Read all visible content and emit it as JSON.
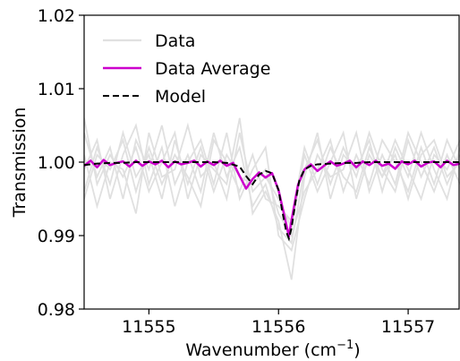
{
  "chart_data": {
    "type": "line",
    "title": "",
    "xlabel": "Wavenumber (cm",
    "xlabel_sup": "−1",
    "xlabel_tail": ")",
    "ylabel": "Transmission",
    "xlim": [
      11554.5,
      11557.4
    ],
    "ylim": [
      0.98,
      1.02
    ],
    "xticks": [
      11555,
      11556,
      11557
    ],
    "xtick_labels": [
      "11555",
      "11556",
      "11557"
    ],
    "yticks": [
      0.98,
      0.99,
      1.0,
      1.01,
      1.02
    ],
    "ytick_labels": [
      "0.98",
      "0.99",
      "1.00",
      "1.01",
      "1.02"
    ],
    "grid": false,
    "legend_position": "top-left",
    "series": [
      {
        "name": "Data",
        "color": "#e0e0e0",
        "style": "solid",
        "traces": [
          {
            "x": [
              11554.5,
              11554.6,
              11554.7,
              11554.8,
              11554.9,
              11555.0,
              11555.1,
              11555.2,
              11555.3,
              11555.4,
              11555.5,
              11555.6,
              11555.7,
              11555.8,
              11555.9,
              11556.0,
              11556.1,
              11556.2,
              11556.3,
              11556.4,
              11556.5,
              11556.6,
              11556.7,
              11556.8,
              11556.9,
              11557.0,
              11557.1,
              11557.2,
              11557.3,
              11557.4
            ],
            "y": [
              1.004,
              0.998,
              1.002,
              0.995,
              1.003,
              0.999,
              1.005,
              0.997,
              1.001,
              0.996,
              1.004,
              0.998,
              1.002,
              0.994,
              0.997,
              0.991,
              0.989,
              0.999,
              1.003,
              0.997,
              1.002,
              0.998,
              1.004,
              0.999,
              0.996,
              1.003,
              0.998,
              1.002,
              0.997,
              1.001
            ]
          },
          {
            "x": [
              11554.5,
              11554.6,
              11554.7,
              11554.8,
              11554.9,
              11555.0,
              11555.1,
              11555.2,
              11555.3,
              11555.4,
              11555.5,
              11555.6,
              11555.7,
              11555.8,
              11555.9,
              11556.0,
              11556.1,
              11556.2,
              11556.3,
              11556.4,
              11556.5,
              11556.6,
              11556.7,
              11556.8,
              11556.9,
              11557.0,
              11557.1,
              11557.2,
              11557.3,
              11557.4
            ],
            "y": [
              0.996,
              1.002,
              0.997,
              1.004,
              0.998,
              1.001,
              0.995,
              1.003,
              0.997,
              1.002,
              0.996,
              1.001,
              0.998,
              0.997,
              0.999,
              0.993,
              0.99,
              0.996,
              0.999,
              1.003,
              0.996,
              1.001,
              0.997,
              1.003,
              1.0,
              0.996,
              1.002,
              0.997,
              1.003,
              0.999
            ]
          },
          {
            "x": [
              11554.5,
              11554.6,
              11554.7,
              11554.8,
              11554.9,
              11555.0,
              11555.1,
              11555.2,
              11555.3,
              11555.4,
              11555.5,
              11555.6,
              11555.7,
              11555.8,
              11555.9,
              11556.0,
              11556.1,
              11556.2,
              11556.3,
              11556.4,
              11556.5,
              11556.6,
              11556.7,
              11556.8,
              11556.9,
              11557.0,
              11557.1,
              11557.2,
              11557.3,
              11557.4
            ],
            "y": [
              1.001,
              0.994,
              1.0,
              0.999,
              0.993,
              1.004,
              0.998,
              0.999,
              1.005,
              0.998,
              1.0,
              0.995,
              1.004,
              0.996,
              0.998,
              0.995,
              0.991,
              1.001,
              0.996,
              1.0,
              1.004,
              0.995,
              1.001,
              0.998,
              1.003,
              0.999,
              0.995,
              1.001,
              0.999,
              1.003
            ]
          },
          {
            "x": [
              11554.5,
              11554.6,
              11554.7,
              11554.8,
              11554.9,
              11555.0,
              11555.1,
              11555.2,
              11555.3,
              11555.4,
              11555.5,
              11555.6,
              11555.7,
              11555.8,
              11555.9,
              11556.0,
              11556.1,
              11556.2,
              11556.3,
              11556.4,
              11556.5,
              11556.6,
              11556.7,
              11556.8,
              11556.9,
              11557.0,
              11557.1,
              11557.2,
              11557.3,
              11557.4
            ],
            "y": [
              0.999,
              1.003,
              0.995,
              1.001,
              1.005,
              0.997,
              1.002,
              0.994,
              1.0,
              1.003,
              0.997,
              1.004,
              0.995,
              0.999,
              1.002,
              0.99,
              0.988,
              0.995,
              1.001,
              0.998,
              0.999,
              1.004,
              0.996,
              1.001,
              0.997,
              1.004,
              1.0,
              0.996,
              1.001,
              0.997
            ]
          },
          {
            "x": [
              11554.5,
              11554.6,
              11554.7,
              11554.8,
              11554.9,
              11555.0,
              11555.1,
              11555.2,
              11555.3,
              11555.4,
              11555.5,
              11555.6,
              11555.7,
              11555.8,
              11555.9,
              11556.0,
              11556.1,
              11556.2,
              11556.3,
              11556.4,
              11556.5,
              11556.6,
              11556.7,
              11556.8,
              11556.9,
              11557.0,
              11557.1,
              11557.2,
              11557.3,
              11557.4
            ],
            "y": [
              1.006,
              0.997,
              1.001,
              0.998,
              1.002,
              0.996,
              1.0,
              1.004,
              0.995,
              1.001,
              0.999,
              0.997,
              1.006,
              0.993,
              0.996,
              0.992,
              0.984,
              0.998,
              1.004,
              0.995,
              1.001,
              0.999,
              1.003,
              0.996,
              1.002,
              0.998,
              1.004,
              0.999,
              0.995,
              1.002
            ]
          },
          {
            "x": [
              11554.5,
              11554.6,
              11554.7,
              11554.8,
              11554.9,
              11555.0,
              11555.1,
              11555.2,
              11555.3,
              11555.4,
              11555.5,
              11555.6,
              11555.7,
              11555.8,
              11555.9,
              11556.0,
              11556.1,
              11556.2,
              11556.3,
              11556.4,
              11556.5,
              11556.6,
              11556.7,
              11556.8,
              11556.9,
              11557.0,
              11557.1,
              11557.2,
              11557.3,
              11557.4
            ],
            "y": [
              0.995,
              1.001,
              0.999,
              1.003,
              0.996,
              1.002,
              0.997,
              1.001,
              0.998,
              0.994,
              1.003,
              1.0,
              0.996,
              1.001,
              0.995,
              0.994,
              0.992,
              1.002,
              0.997,
              1.002,
              0.998,
              0.996,
              1.002,
              0.998,
              1.001,
              0.995,
              1.001,
              1.003,
              0.998,
              1.0
            ]
          }
        ]
      },
      {
        "name": "Data Average",
        "color": "#cc00cc",
        "style": "solid",
        "x": [
          11554.5,
          11554.55,
          11554.6,
          11554.65,
          11554.7,
          11554.75,
          11554.8,
          11554.85,
          11554.9,
          11554.95,
          11555.0,
          11555.05,
          11555.1,
          11555.15,
          11555.2,
          11555.25,
          11555.3,
          11555.35,
          11555.4,
          11555.45,
          11555.5,
          11555.55,
          11555.6,
          11555.65,
          11555.7,
          11555.75,
          11555.8,
          11555.85,
          11555.9,
          11555.95,
          11556.0,
          11556.05,
          11556.08,
          11556.1,
          11556.15,
          11556.2,
          11556.25,
          11556.3,
          11556.35,
          11556.4,
          11556.45,
          11556.5,
          11556.55,
          11556.6,
          11556.65,
          11556.7,
          11556.75,
          11556.8,
          11556.85,
          11556.9,
          11556.95,
          11557.0,
          11557.05,
          11557.1,
          11557.15,
          11557.2,
          11557.25,
          11557.3,
          11557.35,
          11557.4
        ],
        "y": [
          0.9995,
          1.0002,
          0.9993,
          1.0003,
          0.9996,
          0.9999,
          1.0001,
          0.9994,
          1.0002,
          0.9995,
          1.0001,
          0.9997,
          1.0002,
          0.9993,
          1.0001,
          0.9997,
          0.9999,
          1.0002,
          0.9994,
          1.0001,
          0.9996,
          1.0002,
          0.9995,
          0.9999,
          0.9981,
          0.9964,
          0.9977,
          0.9986,
          0.9979,
          0.9985,
          0.9962,
          0.9923,
          0.9899,
          0.9921,
          0.9969,
          0.999,
          0.9997,
          0.9988,
          0.9995,
          1.0001,
          0.9995,
          0.9998,
          1.0002,
          0.9993,
          1.0001,
          0.9996,
          1.0002,
          0.9995,
          0.9998,
          0.9991,
          1.0001,
          0.9997,
          1.0002,
          0.9994,
          0.9999,
          1.0001,
          0.9993,
          1.0002,
          0.9996,
          0.9998
        ]
      },
      {
        "name": "Model",
        "color": "#000000",
        "style": "dashed",
        "x": [
          11554.5,
          11554.6,
          11554.7,
          11554.8,
          11554.9,
          11555.0,
          11555.1,
          11555.2,
          11555.3,
          11555.4,
          11555.5,
          11555.6,
          11555.7,
          11555.75,
          11555.8,
          11555.85,
          11555.9,
          11555.95,
          11556.0,
          11556.03,
          11556.06,
          11556.08,
          11556.1,
          11556.13,
          11556.16,
          11556.2,
          11556.25,
          11556.3,
          11556.4,
          11556.5,
          11556.6,
          11556.7,
          11556.8,
          11556.9,
          11557.0,
          11557.1,
          11557.2,
          11557.3,
          11557.4
        ],
        "y": [
          0.9996,
          0.9998,
          0.9999,
          0.9999,
          1.0,
          1.0,
          1.0,
          1.0,
          1.0,
          1.0,
          1.0,
          0.9999,
          0.9994,
          0.9981,
          0.997,
          0.9983,
          0.9988,
          0.9985,
          0.9962,
          0.9932,
          0.9905,
          0.9896,
          0.991,
          0.9945,
          0.9975,
          0.999,
          0.9995,
          0.9997,
          0.9998,
          0.9999,
          0.9999,
          1.0,
          1.0,
          1.0,
          1.0,
          1.0,
          1.0,
          1.0,
          1.0
        ]
      }
    ]
  }
}
